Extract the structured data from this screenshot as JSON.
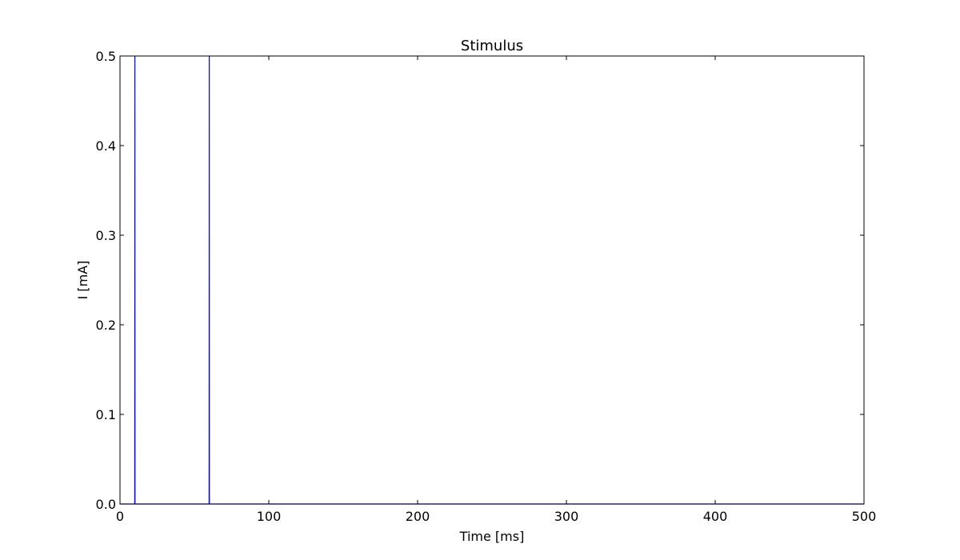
{
  "chart_data": {
    "type": "line",
    "title": "Stimulus",
    "xlabel": "Time [ms]",
    "ylabel": "I [mA]",
    "xlim": [
      0,
      500
    ],
    "ylim": [
      0.0,
      0.5
    ],
    "xticks": [
      0,
      100,
      200,
      300,
      400,
      500
    ],
    "xtick_labels": [
      "0",
      "100",
      "200",
      "300",
      "400",
      "500"
    ],
    "yticks": [
      0.0,
      0.1,
      0.2,
      0.3,
      0.4,
      0.5
    ],
    "ytick_labels": [
      "0.0",
      "0.1",
      "0.2",
      "0.3",
      "0.4",
      "0.5"
    ],
    "grid": false,
    "series": [
      {
        "color": "#0000ff",
        "x": [
          0,
          9.9,
          10,
          10.1,
          59.9,
          60,
          60.1,
          500
        ],
        "y": [
          0,
          0,
          0.5,
          0,
          0,
          0.5,
          0,
          0
        ]
      }
    ]
  }
}
